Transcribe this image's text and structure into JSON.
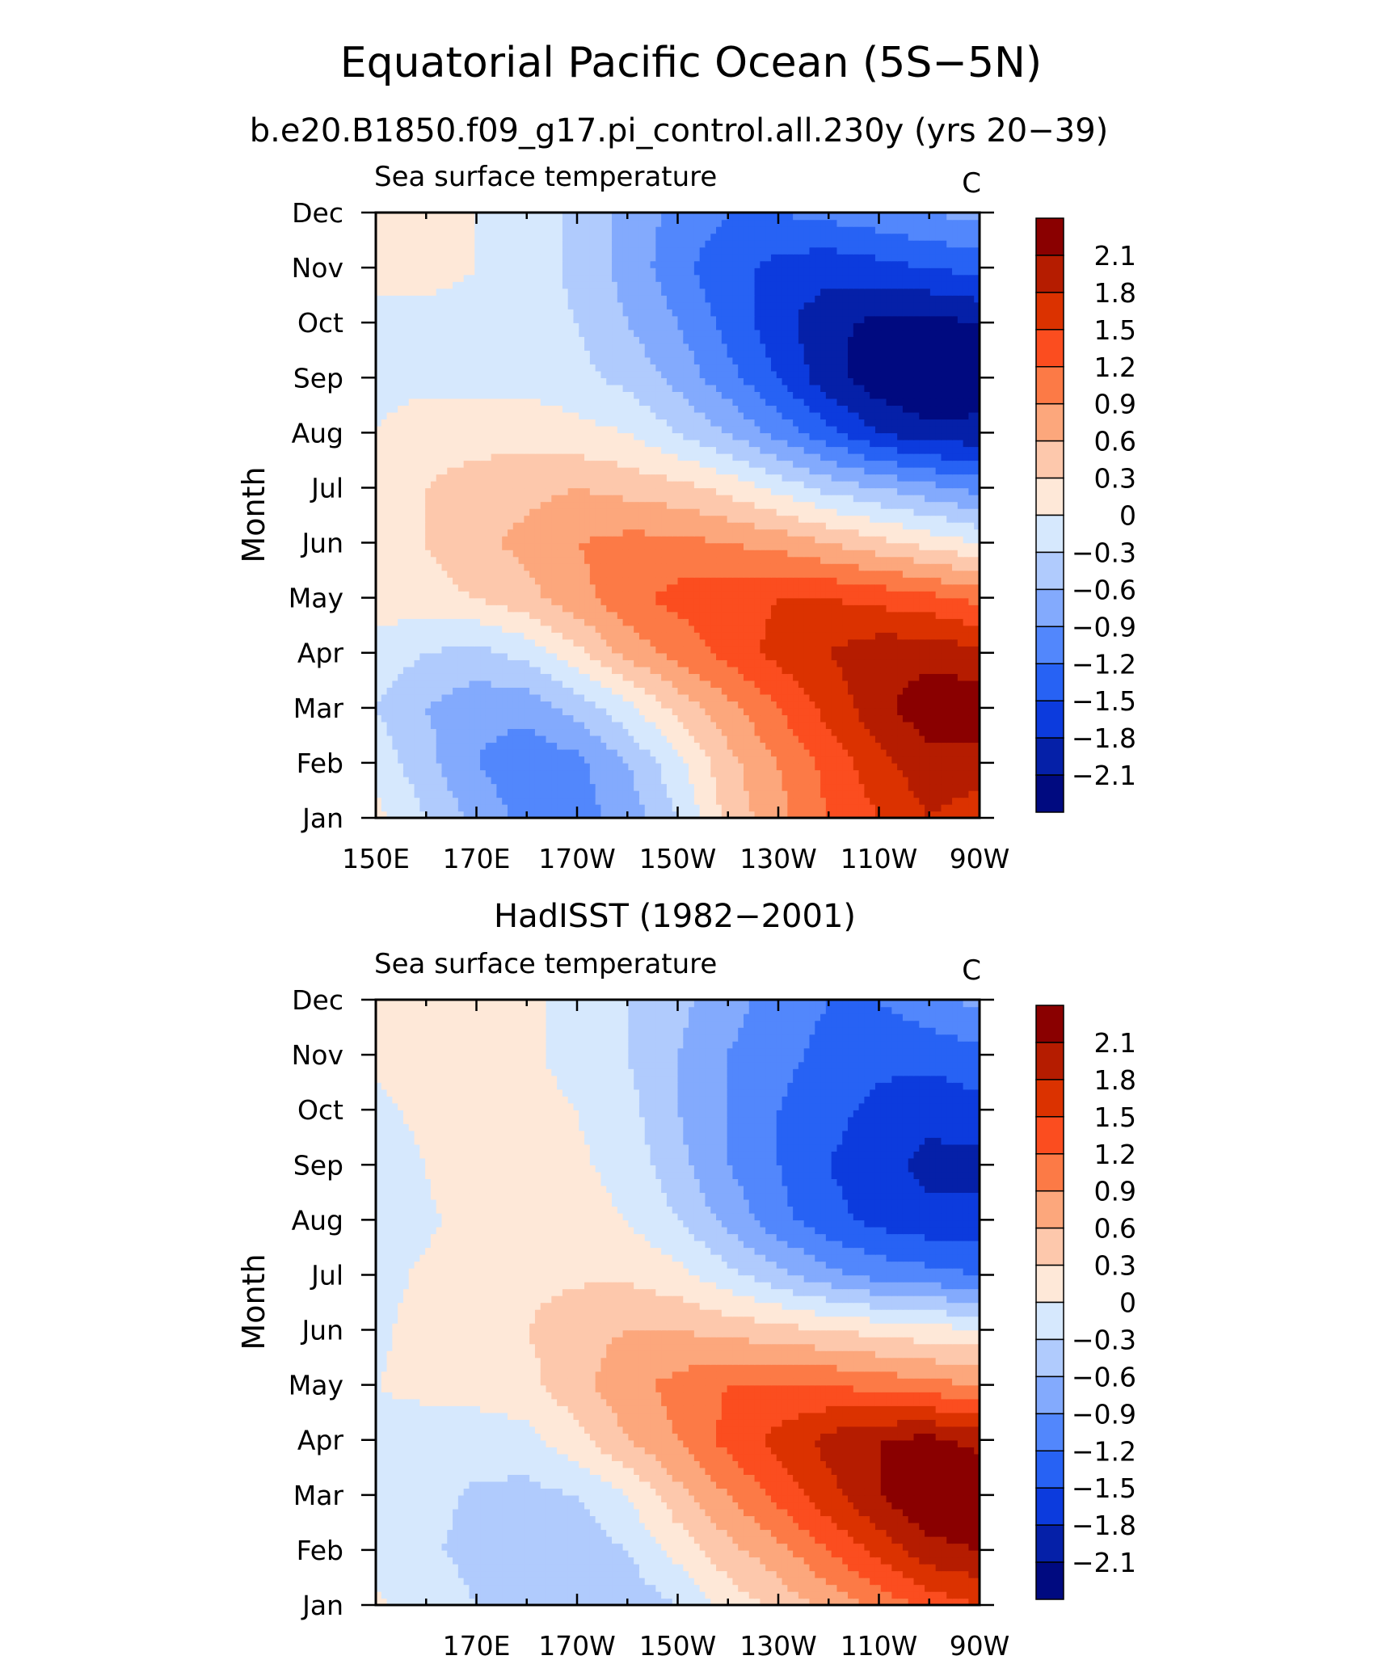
{
  "figure": {
    "title": "Equatorial Pacific Ocean (5S−5N)",
    "subtitle": "b.e20.B1850.f09_g17.pi_control.all.230y (yrs 20−39)"
  },
  "colorbar": {
    "levels": [
      "2.1",
      "1.8",
      "1.5",
      "1.2",
      "0.9",
      "0.6",
      "0.3",
      "0",
      "−0.3",
      "−0.6",
      "−0.9",
      "−1.2",
      "−1.5",
      "−1.8",
      "−2.1"
    ],
    "colors": [
      "#8a0000",
      "#b51c00",
      "#db3200",
      "#fb4d1f",
      "#fc7a46",
      "#fca77c",
      "#fdc8ac",
      "#fee8d8",
      "#d6e8fd",
      "#b0cbfd",
      "#83aafd",
      "#5287fc",
      "#2762f4",
      "#0c3bdd",
      "#0520a8",
      "#000a80"
    ]
  },
  "chart_data": [
    {
      "type": "heatmap",
      "title": "b.e20.B1850.f09_g17.pi_control.all.230y (yrs 20−39)",
      "left_label": "Sea surface temperature",
      "units": "C",
      "ylabel": "Month",
      "x_ticks": [
        "150E",
        "170E",
        "170W",
        "150W",
        "130W",
        "110W",
        "90W"
      ],
      "y_ticks": [
        "Jan",
        "Feb",
        "Mar",
        "Apr",
        "May",
        "Jun",
        "Jul",
        "Aug",
        "Sep",
        "Oct",
        "Nov",
        "Dec"
      ],
      "x_values": [
        150,
        160,
        170,
        180,
        190,
        200,
        210,
        220,
        230,
        240,
        250,
        260,
        270
      ],
      "z": [
        [
          0.1,
          -0.3,
          -0.7,
          -1.0,
          -1.0,
          -0.8,
          -0.3,
          0.4,
          0.8,
          1.2,
          1.5,
          1.8,
          1.6
        ],
        [
          -0.1,
          -0.5,
          -0.9,
          -1.1,
          -1.0,
          -0.6,
          -0.1,
          0.5,
          0.9,
          1.3,
          1.7,
          2.0,
          2.0
        ],
        [
          -0.3,
          -0.6,
          -0.8,
          -0.8,
          -0.5,
          -0.1,
          0.4,
          0.8,
          1.2,
          1.6,
          2.0,
          2.3,
          2.3
        ],
        [
          -0.1,
          -0.3,
          -0.4,
          -0.2,
          0.2,
          0.7,
          1.0,
          1.3,
          1.6,
          1.8,
          2.0,
          2.0,
          1.9
        ],
        [
          0.1,
          0.2,
          0.3,
          0.5,
          0.8,
          1.1,
          1.3,
          1.4,
          1.5,
          1.5,
          1.4,
          1.3,
          1.1
        ],
        [
          0.1,
          0.3,
          0.5,
          0.7,
          0.9,
          1.0,
          1.0,
          0.9,
          0.8,
          0.6,
          0.4,
          0.2,
          0.0
        ],
        [
          0.1,
          0.3,
          0.4,
          0.5,
          0.6,
          0.5,
          0.4,
          0.2,
          -0.1,
          -0.4,
          -0.6,
          -0.8,
          -1.0
        ],
        [
          0.0,
          0.2,
          0.2,
          0.2,
          0.1,
          0.0,
          -0.3,
          -0.6,
          -1.0,
          -1.4,
          -1.8,
          -2.0,
          -2.0
        ],
        [
          -0.1,
          -0.1,
          -0.1,
          -0.1,
          -0.2,
          -0.4,
          -0.7,
          -1.1,
          -1.5,
          -2.0,
          -2.3,
          -2.4,
          -2.3
        ],
        [
          -0.1,
          -0.1,
          -0.1,
          -0.1,
          -0.3,
          -0.6,
          -0.9,
          -1.3,
          -1.7,
          -2.0,
          -2.2,
          -2.2,
          -2.1
        ],
        [
          0.1,
          0.1,
          0.0,
          -0.1,
          -0.4,
          -0.7,
          -1.1,
          -1.4,
          -1.6,
          -1.7,
          -1.6,
          -1.5,
          -1.4
        ],
        [
          0.1,
          0.1,
          0.0,
          -0.1,
          -0.4,
          -0.7,
          -1.0,
          -1.2,
          -1.2,
          -1.1,
          -1.0,
          -0.9,
          -0.8
        ]
      ]
    },
    {
      "type": "heatmap",
      "title": "HadISST (1982−2001)",
      "left_label": "Sea surface temperature",
      "units": "C",
      "ylabel": "Month",
      "x_ticks": [
        "170E",
        "170W",
        "150W",
        "130W",
        "110W",
        "90W"
      ],
      "y_ticks": [
        "Jan",
        "Feb",
        "Mar",
        "Apr",
        "May",
        "Jun",
        "Jul",
        "Aug",
        "Sep",
        "Oct",
        "Nov",
        "Dec"
      ],
      "x_values": [
        150,
        160,
        170,
        180,
        190,
        200,
        210,
        220,
        230,
        240,
        250,
        260,
        270
      ],
      "z": [
        [
          0.05,
          -0.1,
          -0.3,
          -0.4,
          -0.5,
          -0.5,
          -0.3,
          0.1,
          0.4,
          0.7,
          1.0,
          1.3,
          1.5
        ],
        [
          -0.1,
          -0.25,
          -0.4,
          -0.5,
          -0.5,
          -0.3,
          0.1,
          0.5,
          0.8,
          1.2,
          1.6,
          2.0,
          2.1
        ],
        [
          -0.1,
          -0.2,
          -0.35,
          -0.4,
          -0.3,
          0.0,
          0.5,
          0.9,
          1.3,
          1.7,
          2.1,
          2.4,
          2.4
        ],
        [
          -0.05,
          -0.1,
          -0.15,
          -0.1,
          0.2,
          0.6,
          0.9,
          1.3,
          1.6,
          1.9,
          2.1,
          2.2,
          2.0
        ],
        [
          0.0,
          0.05,
          0.1,
          0.2,
          0.5,
          0.8,
          1.0,
          1.2,
          1.2,
          1.2,
          1.1,
          1.0,
          0.9
        ],
        [
          -0.05,
          0.1,
          0.2,
          0.3,
          0.5,
          0.6,
          0.6,
          0.5,
          0.4,
          0.3,
          0.2,
          0.1,
          0.05
        ],
        [
          -0.1,
          0.05,
          0.15,
          0.2,
          0.25,
          0.25,
          0.1,
          -0.2,
          -0.5,
          -0.8,
          -1.0,
          -1.1,
          -1.2
        ],
        [
          -0.2,
          -0.05,
          0.1,
          0.15,
          0.1,
          0.0,
          -0.3,
          -0.7,
          -1.1,
          -1.4,
          -1.6,
          -1.7,
          -1.7
        ],
        [
          -0.1,
          0.0,
          0.3,
          0.15,
          0.05,
          -0.1,
          -0.5,
          -0.9,
          -1.2,
          -1.5,
          -1.7,
          -1.9,
          -1.9
        ],
        [
          -0.05,
          0.05,
          0.1,
          0.1,
          0.0,
          -0.2,
          -0.6,
          -0.9,
          -1.2,
          -1.4,
          -1.6,
          -1.7,
          -1.6
        ],
        [
          0.05,
          0.1,
          0.1,
          0.05,
          -0.1,
          -0.3,
          -0.6,
          -0.9,
          -1.1,
          -1.3,
          -1.4,
          -1.4,
          -1.3
        ],
        [
          0.05,
          0.1,
          0.1,
          0.05,
          -0.1,
          -0.3,
          -0.5,
          -0.8,
          -1.0,
          -1.2,
          -1.2,
          -1.0,
          -0.8
        ]
      ]
    }
  ]
}
